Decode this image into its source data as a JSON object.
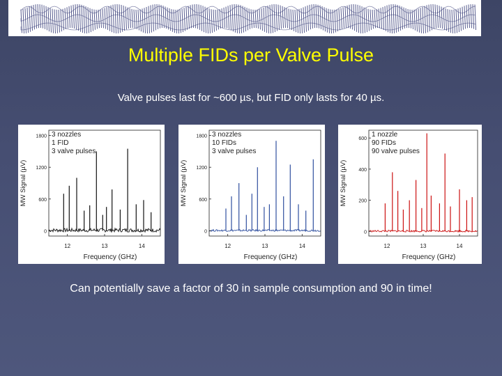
{
  "slide": {
    "title": "Multiple FIDs per Valve Pulse",
    "subtitle": "Valve pulses last for ~600 µs, but FID only lasts for 40 µs.",
    "footer": "Can potentially save a factor of 30 in sample consumption and 90 in time!"
  },
  "banner": {
    "line_color": "#3a3f7a"
  },
  "chart_data": [
    {
      "type": "line",
      "legend": [
        "3 nozzles",
        "1 FID",
        "3 valve pulses"
      ],
      "legend_position": "top-left",
      "xlabel": "Frequency (GHz)",
      "ylabel": "MW Signal (µV)",
      "xlim": [
        11.5,
        14.5
      ],
      "ylim": [
        -100,
        1900
      ],
      "xticks": [
        12,
        13,
        14
      ],
      "yticks": [
        0,
        600,
        1200,
        1800
      ],
      "color": "#111111",
      "noise_level": 35,
      "peaks": [
        {
          "x": 11.9,
          "y": 700
        },
        {
          "x": 12.05,
          "y": 850
        },
        {
          "x": 12.25,
          "y": 1000
        },
        {
          "x": 12.45,
          "y": 380
        },
        {
          "x": 12.6,
          "y": 480
        },
        {
          "x": 12.78,
          "y": 1500
        },
        {
          "x": 12.95,
          "y": 300
        },
        {
          "x": 13.05,
          "y": 450
        },
        {
          "x": 13.2,
          "y": 780
        },
        {
          "x": 13.42,
          "y": 400
        },
        {
          "x": 13.62,
          "y": 1550
        },
        {
          "x": 13.85,
          "y": 500
        },
        {
          "x": 14.05,
          "y": 580
        },
        {
          "x": 14.25,
          "y": 350
        }
      ]
    },
    {
      "type": "line",
      "legend": [
        "3 nozzles",
        "10 FIDs",
        "3 valve pulses"
      ],
      "legend_position": "top-left",
      "xlabel": "Frequency (GHz)",
      "ylabel": "MW Signal (µV)",
      "xlim": [
        11.5,
        14.5
      ],
      "ylim": [
        -100,
        1900
      ],
      "xticks": [
        12,
        13,
        14
      ],
      "yticks": [
        0,
        600,
        1200,
        1800
      ],
      "color": "#2f4f9f",
      "noise_level": 18,
      "peaks": [
        {
          "x": 11.95,
          "y": 420
        },
        {
          "x": 12.1,
          "y": 650
        },
        {
          "x": 12.3,
          "y": 900
        },
        {
          "x": 12.5,
          "y": 300
        },
        {
          "x": 12.65,
          "y": 700
        },
        {
          "x": 12.8,
          "y": 1200
        },
        {
          "x": 12.98,
          "y": 450
        },
        {
          "x": 13.12,
          "y": 500
        },
        {
          "x": 13.3,
          "y": 1700
        },
        {
          "x": 13.5,
          "y": 650
        },
        {
          "x": 13.68,
          "y": 1250
        },
        {
          "x": 13.9,
          "y": 500
        },
        {
          "x": 14.1,
          "y": 380
        },
        {
          "x": 14.3,
          "y": 1350
        }
      ]
    },
    {
      "type": "line",
      "legend": [
        "1 nozzle",
        "90 FIDs",
        "90 valve pulses"
      ],
      "legend_position": "top-left",
      "xlabel": "Frequency (GHz)",
      "ylabel": "MW Signal (µV)",
      "xlim": [
        11.5,
        14.5
      ],
      "ylim": [
        -30,
        650
      ],
      "xticks": [
        12,
        13,
        14
      ],
      "yticks": [
        0,
        200,
        400,
        600
      ],
      "color": "#cc1111",
      "noise_level": 6,
      "peaks": [
        {
          "x": 11.95,
          "y": 180
        },
        {
          "x": 12.15,
          "y": 380
        },
        {
          "x": 12.3,
          "y": 260
        },
        {
          "x": 12.45,
          "y": 140
        },
        {
          "x": 12.62,
          "y": 200
        },
        {
          "x": 12.8,
          "y": 330
        },
        {
          "x": 12.96,
          "y": 150
        },
        {
          "x": 13.1,
          "y": 630
        },
        {
          "x": 13.22,
          "y": 230
        },
        {
          "x": 13.45,
          "y": 180
        },
        {
          "x": 13.6,
          "y": 500
        },
        {
          "x": 13.75,
          "y": 160
        },
        {
          "x": 14.0,
          "y": 270
        },
        {
          "x": 14.2,
          "y": 200
        },
        {
          "x": 14.35,
          "y": 220
        }
      ]
    }
  ]
}
